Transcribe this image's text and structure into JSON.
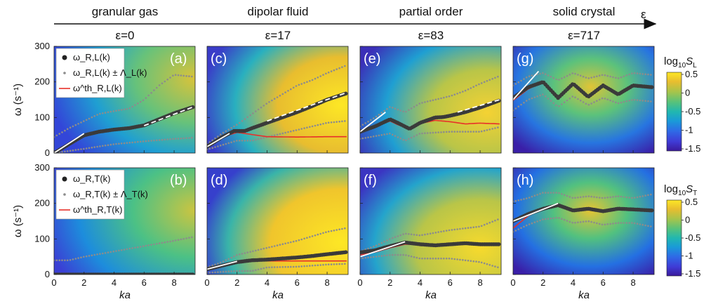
{
  "colors": {
    "colormap": [
      "#3b1a9c",
      "#3f3bd6",
      "#2f69e6",
      "#1a9ad8",
      "#21b7b0",
      "#57c27b",
      "#a6c44b",
      "#e8bd2f",
      "#fde725"
    ],
    "data_points": "#3a3a3a",
    "error_band": "#8c8c8c",
    "theory_line": "#e8302a",
    "fit_line": "#ffffff"
  },
  "header": {
    "axis_symbol": "ε",
    "phases": [
      {
        "name": "granular gas",
        "eps": "ε=0"
      },
      {
        "name": "dipolar fluid",
        "eps": "ε=17"
      },
      {
        "name": "partial order",
        "eps": "ε=83"
      },
      {
        "name": "solid crystal",
        "eps": "ε=717"
      }
    ]
  },
  "colorbars": [
    {
      "label_prefix": "log",
      "label_base": "10",
      "label_var": "S",
      "label_sub": "L",
      "ticks": [
        "0.5",
        "0",
        "-0.5",
        "-1",
        "-1.5"
      ]
    },
    {
      "label_prefix": "log",
      "label_base": "10",
      "label_var": "S",
      "label_sub": "T",
      "ticks": [
        "0.5",
        "0",
        "-0.5",
        "-1",
        "-1.5"
      ]
    }
  ],
  "legends": [
    {
      "data": "ω_R,L(k)",
      "band": "ω_R,L(k) ± Λ_L(k)",
      "theory": "ω^th_R,L(k)"
    },
    {
      "data": "ω_R,T(k)",
      "band": "ω_R,T(k) ± Λ_T(k)",
      "theory": "ω^th_R,T(k)"
    }
  ],
  "chart_data": [
    {
      "type": "heatmap",
      "panel": "(a)",
      "xlabel": "ka",
      "ylabel": "ω (s⁻¹)",
      "xlim": [
        0,
        9.4
      ],
      "ylim": [
        0,
        300
      ],
      "xticks": [
        0,
        2,
        4,
        6,
        8
      ],
      "yticks": [
        0,
        100,
        200,
        300
      ],
      "data": {
        "x": [
          0,
          1,
          2,
          3,
          4,
          5,
          6,
          7,
          8,
          9.3
        ],
        "y": [
          0,
          25,
          50,
          60,
          66,
          70,
          78,
          95,
          112,
          130
        ]
      },
      "band_upper": {
        "x": [
          0,
          1,
          2,
          3,
          4,
          5,
          6,
          7,
          8,
          9.2
        ],
        "y": [
          45,
          70,
          90,
          110,
          118,
          125,
          150,
          190,
          220,
          215
        ]
      },
      "band_lower": {
        "x": [
          0,
          2,
          4,
          6,
          8,
          9.2
        ],
        "y": [
          0,
          12,
          25,
          33,
          40,
          43
        ]
      },
      "fits": [
        {
          "x": [
            0,
            2
          ],
          "y": [
            0,
            55
          ]
        },
        {
          "x": [
            6,
            9.3
          ],
          "y": [
            77,
            130
          ]
        }
      ]
    },
    {
      "type": "heatmap",
      "panel": "(c)",
      "xlim": [
        0,
        9.4
      ],
      "ylim": [
        0,
        300
      ],
      "xticks": [
        0,
        2,
        4,
        6,
        8
      ],
      "yticks": [
        0,
        100,
        200,
        300
      ],
      "data": {
        "x": [
          0,
          1,
          1.8,
          2.5,
          3,
          4,
          5,
          6,
          7,
          8,
          9.3
        ],
        "y": [
          18,
          45,
          62,
          62,
          70,
          85,
          100,
          115,
          132,
          150,
          168
        ]
      },
      "band_upper": {
        "x": [
          0,
          1,
          2,
          3,
          4,
          5,
          6,
          7,
          8,
          9.2
        ],
        "y": [
          25,
          55,
          80,
          110,
          140,
          165,
          190,
          205,
          225,
          245
        ]
      },
      "band_lower": {
        "x": [
          0,
          2,
          3,
          4,
          6,
          8,
          9.2
        ],
        "y": [
          10,
          35,
          35,
          45,
          65,
          85,
          90
        ]
      },
      "theory": {
        "x": [
          0,
          1,
          2,
          3,
          4,
          6,
          8,
          9.3
        ],
        "y": [
          18,
          45,
          58,
          52,
          46,
          45,
          46,
          46
        ]
      },
      "fits": [
        {
          "x": [
            0,
            1.5
          ],
          "y": [
            18,
            55
          ]
        },
        {
          "x": [
            4,
            9.3
          ],
          "y": [
            90,
            170
          ]
        }
      ]
    },
    {
      "type": "heatmap",
      "panel": "(e)",
      "xlim": [
        0,
        9.4
      ],
      "ylim": [
        0,
        300
      ],
      "xticks": [
        0,
        2,
        4,
        6,
        8
      ],
      "yticks": [
        0,
        100,
        200,
        300
      ],
      "data": {
        "x": [
          0,
          1,
          2,
          2.5,
          3.3,
          4,
          5,
          5.5,
          6,
          7,
          8,
          9.3
        ],
        "y": [
          60,
          75,
          95,
          85,
          68,
          85,
          100,
          101,
          105,
          115,
          128,
          148
        ]
      },
      "band_upper": {
        "x": [
          0,
          1,
          2,
          3,
          4,
          5,
          6,
          7,
          8,
          9.2
        ],
        "y": [
          75,
          100,
          130,
          115,
          140,
          150,
          160,
          175,
          195,
          215
        ]
      },
      "band_lower": {
        "x": [
          0,
          2,
          3,
          4,
          6,
          8,
          9.2
        ],
        "y": [
          40,
          55,
          35,
          55,
          60,
          60,
          72
        ]
      },
      "theory": {
        "x": [
          0,
          1,
          2,
          2.5,
          3.3,
          4,
          5,
          6,
          7,
          8,
          9.3
        ],
        "y": [
          60,
          75,
          90,
          80,
          68,
          83,
          92,
          88,
          82,
          84,
          82
        ]
      },
      "fits": [
        {
          "x": [
            0,
            1.7
          ],
          "y": [
            60,
            115
          ]
        },
        {
          "x": [
            6.5,
            9.3
          ],
          "y": [
            115,
            150
          ]
        }
      ]
    },
    {
      "type": "heatmap",
      "panel": "(g)",
      "xlim": [
        0,
        9.4
      ],
      "ylim": [
        0,
        300
      ],
      "xticks": [
        0,
        2,
        4,
        6,
        8
      ],
      "yticks": [
        0,
        100,
        200,
        300
      ],
      "data": {
        "x": [
          0,
          1,
          2,
          3,
          4,
          5,
          6,
          7,
          8,
          9.3
        ],
        "y": [
          155,
          185,
          200,
          155,
          195,
          158,
          190,
          165,
          190,
          185
        ]
      },
      "band_upper": {
        "x": [
          0,
          1,
          2,
          3,
          4,
          5,
          6,
          7,
          8,
          9.2
        ],
        "y": [
          190,
          215,
          225,
          205,
          225,
          210,
          220,
          210,
          225,
          220
        ]
      },
      "band_lower": {
        "x": [
          0,
          1,
          2,
          3,
          4,
          5,
          6,
          7,
          8,
          9.2
        ],
        "y": [
          120,
          150,
          165,
          130,
          160,
          135,
          155,
          140,
          150,
          145
        ]
      },
      "theory": {
        "x": [
          0,
          1,
          2,
          3,
          4,
          5,
          6,
          7,
          8,
          9.3
        ],
        "y": [
          148,
          180,
          200,
          155,
          193,
          160,
          188,
          168,
          188,
          182
        ]
      },
      "fits": [
        {
          "x": [
            0,
            1.7
          ],
          "y": [
            150,
            230
          ]
        }
      ]
    },
    {
      "type": "heatmap",
      "panel": "(b)",
      "xlabel": "ka",
      "ylabel": "ω (s⁻¹)",
      "xlim": [
        0,
        9.4
      ],
      "ylim": [
        0,
        300
      ],
      "xticks": [
        0,
        2,
        4,
        6,
        8
      ],
      "yticks": [
        0,
        100,
        200,
        300
      ],
      "data": {
        "x": [
          0,
          2,
          4,
          6,
          8,
          9.3
        ],
        "y": [
          0,
          0,
          0,
          0,
          0,
          0
        ]
      },
      "band_upper": {
        "x": [
          0,
          1,
          2,
          4,
          6,
          8,
          9.2
        ],
        "y": [
          40,
          40,
          50,
          65,
          80,
          95,
          105
        ]
      },
      "band_lower": {
        "x": [
          0,
          9.2
        ],
        "y": [
          0,
          0
        ]
      },
      "fits": []
    },
    {
      "type": "heatmap",
      "panel": "(d)",
      "xlim": [
        0,
        9.4
      ],
      "ylim": [
        0,
        300
      ],
      "xticks": [
        0,
        2,
        4,
        6,
        8
      ],
      "yticks": [
        0,
        100,
        200,
        300
      ],
      "data": {
        "x": [
          0,
          1,
          2,
          3,
          4,
          5,
          6,
          7,
          8,
          9.3
        ],
        "y": [
          15,
          25,
          35,
          40,
          42,
          45,
          48,
          52,
          57,
          63
        ]
      },
      "band_upper": {
        "x": [
          0,
          1,
          2,
          3,
          4,
          6,
          8,
          9.2
        ],
        "y": [
          20,
          35,
          55,
          65,
          75,
          95,
          120,
          130
        ]
      },
      "band_lower": {
        "x": [
          0,
          2,
          3,
          4,
          6,
          8,
          9.2
        ],
        "y": [
          5,
          10,
          10,
          20,
          22,
          28,
          30
        ]
      },
      "theory": {
        "x": [
          0,
          1,
          2,
          3,
          4,
          6,
          8,
          9.3
        ],
        "y": [
          15,
          25,
          35,
          38,
          38,
          38,
          38,
          38
        ]
      },
      "fits": [
        {
          "x": [
            0,
            2
          ],
          "y": [
            15,
            37
          ]
        }
      ]
    },
    {
      "type": "heatmap",
      "panel": "(f)",
      "xlim": [
        0,
        9.4
      ],
      "ylim": [
        0,
        300
      ],
      "xticks": [
        0,
        2,
        4,
        6,
        8
      ],
      "yticks": [
        0,
        100,
        200,
        300
      ],
      "data": {
        "x": [
          0,
          1,
          2,
          3,
          4,
          5,
          6,
          7,
          8,
          9.3
        ],
        "y": [
          62,
          68,
          80,
          90,
          85,
          82,
          85,
          88,
          85,
          85
        ]
      },
      "band_upper": {
        "x": [
          0,
          1,
          2,
          3,
          4,
          6,
          8,
          9.2
        ],
        "y": [
          65,
          80,
          100,
          115,
          110,
          125,
          135,
          155
        ]
      },
      "band_lower": {
        "x": [
          0,
          1,
          2,
          3,
          4,
          6,
          8,
          9.2
        ],
        "y": [
          45,
          50,
          55,
          55,
          45,
          45,
          35,
          20
        ]
      },
      "theory": {
        "x": [
          0,
          1,
          2,
          3,
          4,
          5,
          6,
          7,
          8,
          9.3
        ],
        "y": [
          55,
          63,
          75,
          85,
          85,
          84,
          85,
          86,
          85,
          86
        ]
      },
      "fits": [
        {
          "x": [
            0,
            3
          ],
          "y": [
            50,
            92
          ]
        }
      ]
    },
    {
      "type": "heatmap",
      "panel": "(h)",
      "xlim": [
        0,
        9.4
      ],
      "ylim": [
        0,
        300
      ],
      "xticks": [
        0,
        2,
        4,
        6,
        8
      ],
      "yticks": [
        0,
        100,
        200,
        300
      ],
      "data": {
        "x": [
          0,
          1,
          2,
          3,
          4,
          5,
          6,
          7,
          8,
          9.3
        ],
        "y": [
          150,
          170,
          185,
          195,
          180,
          185,
          178,
          185,
          183,
          180
        ]
      },
      "band_upper": {
        "x": [
          0,
          1,
          2,
          3,
          4,
          5,
          6,
          7,
          8,
          9.2
        ],
        "y": [
          205,
          215,
          230,
          230,
          215,
          220,
          215,
          220,
          215,
          225
        ]
      },
      "band_lower": {
        "x": [
          0,
          1,
          2,
          3,
          4,
          5,
          6,
          7,
          8,
          9.2
        ],
        "y": [
          120,
          140,
          155,
          160,
          145,
          150,
          140,
          145,
          145,
          135
        ]
      },
      "theory": {
        "x": [
          0,
          1,
          2,
          3,
          4,
          5,
          6,
          7,
          8,
          9.3
        ],
        "y": [
          130,
          165,
          185,
          195,
          180,
          185,
          178,
          185,
          182,
          180
        ]
      },
      "fits": [
        {
          "x": [
            0,
            3
          ],
          "y": [
            150,
            200
          ]
        }
      ]
    }
  ]
}
